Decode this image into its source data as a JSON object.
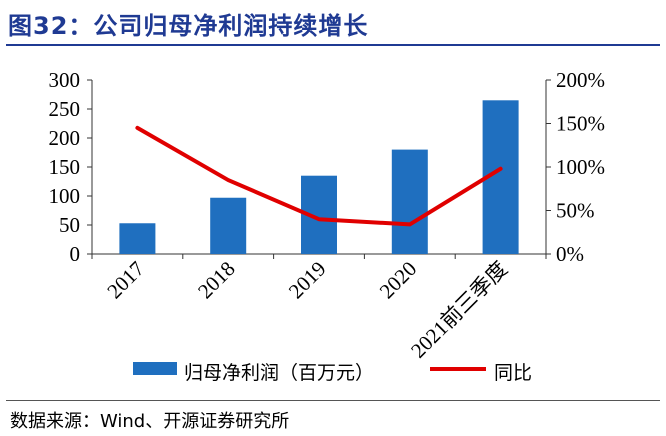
{
  "title": "图32：公司归母净利润持续增长",
  "source": "数据来源：Wind、开源证券研究所",
  "chart_data": {
    "type": "bar",
    "categories": [
      "2017",
      "2018",
      "2019",
      "2020",
      "2021前三季度"
    ],
    "series": [
      {
        "name": "归母净利润（百万元）",
        "type": "bar",
        "axis": "left",
        "color": "#1f6fbf",
        "values": [
          53,
          97,
          135,
          180,
          265
        ]
      },
      {
        "name": "同比",
        "type": "line",
        "axis": "right",
        "color": "#e00000",
        "values": [
          145,
          85,
          40,
          34,
          98
        ]
      }
    ],
    "y_left": {
      "min": 0,
      "max": 300,
      "ticks": [
        "0",
        "50",
        "100",
        "150",
        "200",
        "250",
        "300"
      ]
    },
    "y_right": {
      "min": 0,
      "max": 200,
      "ticks": [
        "0%",
        "50%",
        "100%",
        "150%",
        "200%"
      ]
    },
    "legend_position": "bottom"
  }
}
